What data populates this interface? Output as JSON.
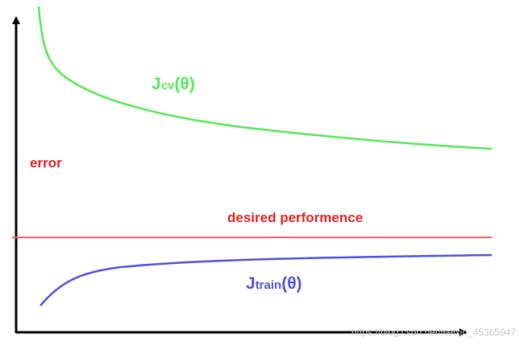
{
  "labels": {
    "cv": {
      "main": "J",
      "sub": "cv",
      "tail": "(θ)"
    },
    "error": "error",
    "desired": "desired performence",
    "train": {
      "main": "J",
      "sub": "train",
      "tail": "(θ)"
    }
  },
  "watermark": "https://blog.csdn.net/weixin_45365047"
}
